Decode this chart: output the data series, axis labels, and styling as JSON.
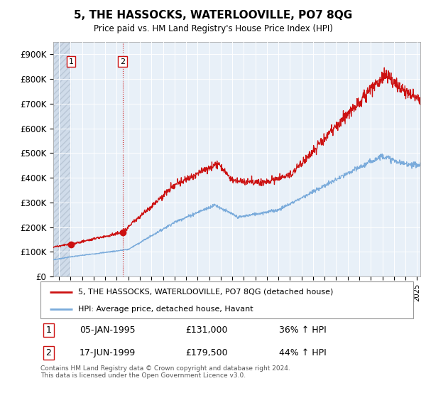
{
  "title": "5, THE HASSOCKS, WATERLOOVILLE, PO7 8QG",
  "subtitle": "Price paid vs. HM Land Registry's House Price Index (HPI)",
  "ylabel_ticks": [
    "£0",
    "£100K",
    "£200K",
    "£300K",
    "£400K",
    "£500K",
    "£600K",
    "£700K",
    "£800K",
    "£900K"
  ],
  "ytick_values": [
    0,
    100000,
    200000,
    300000,
    400000,
    500000,
    600000,
    700000,
    800000,
    900000
  ],
  "ylim": [
    0,
    950000
  ],
  "xlim_start": 1993.5,
  "xlim_end": 2025.3,
  "hpi_color": "#7aabdb",
  "price_color": "#cc1111",
  "hatch_end": 1995.0,
  "sale1_year": 1995.03,
  "sale1_price": 131000,
  "sale1_label": "1",
  "sale2_year": 1999.5,
  "sale2_price": 179500,
  "sale2_label": "2",
  "legend_line1": "5, THE HASSOCKS, WATERLOOVILLE, PO7 8QG (detached house)",
  "legend_line2": "HPI: Average price, detached house, Havant",
  "table_row1": [
    "1",
    "05-JAN-1995",
    "£131,000",
    "36% ↑ HPI"
  ],
  "table_row2": [
    "2",
    "17-JUN-1999",
    "£179,500",
    "44% ↑ HPI"
  ],
  "footer": "Contains HM Land Registry data © Crown copyright and database right 2024.\nThis data is licensed under the Open Government Licence v3.0.",
  "plot_bg": "#e8f0f8",
  "hatch_bg": "#d0dcea"
}
